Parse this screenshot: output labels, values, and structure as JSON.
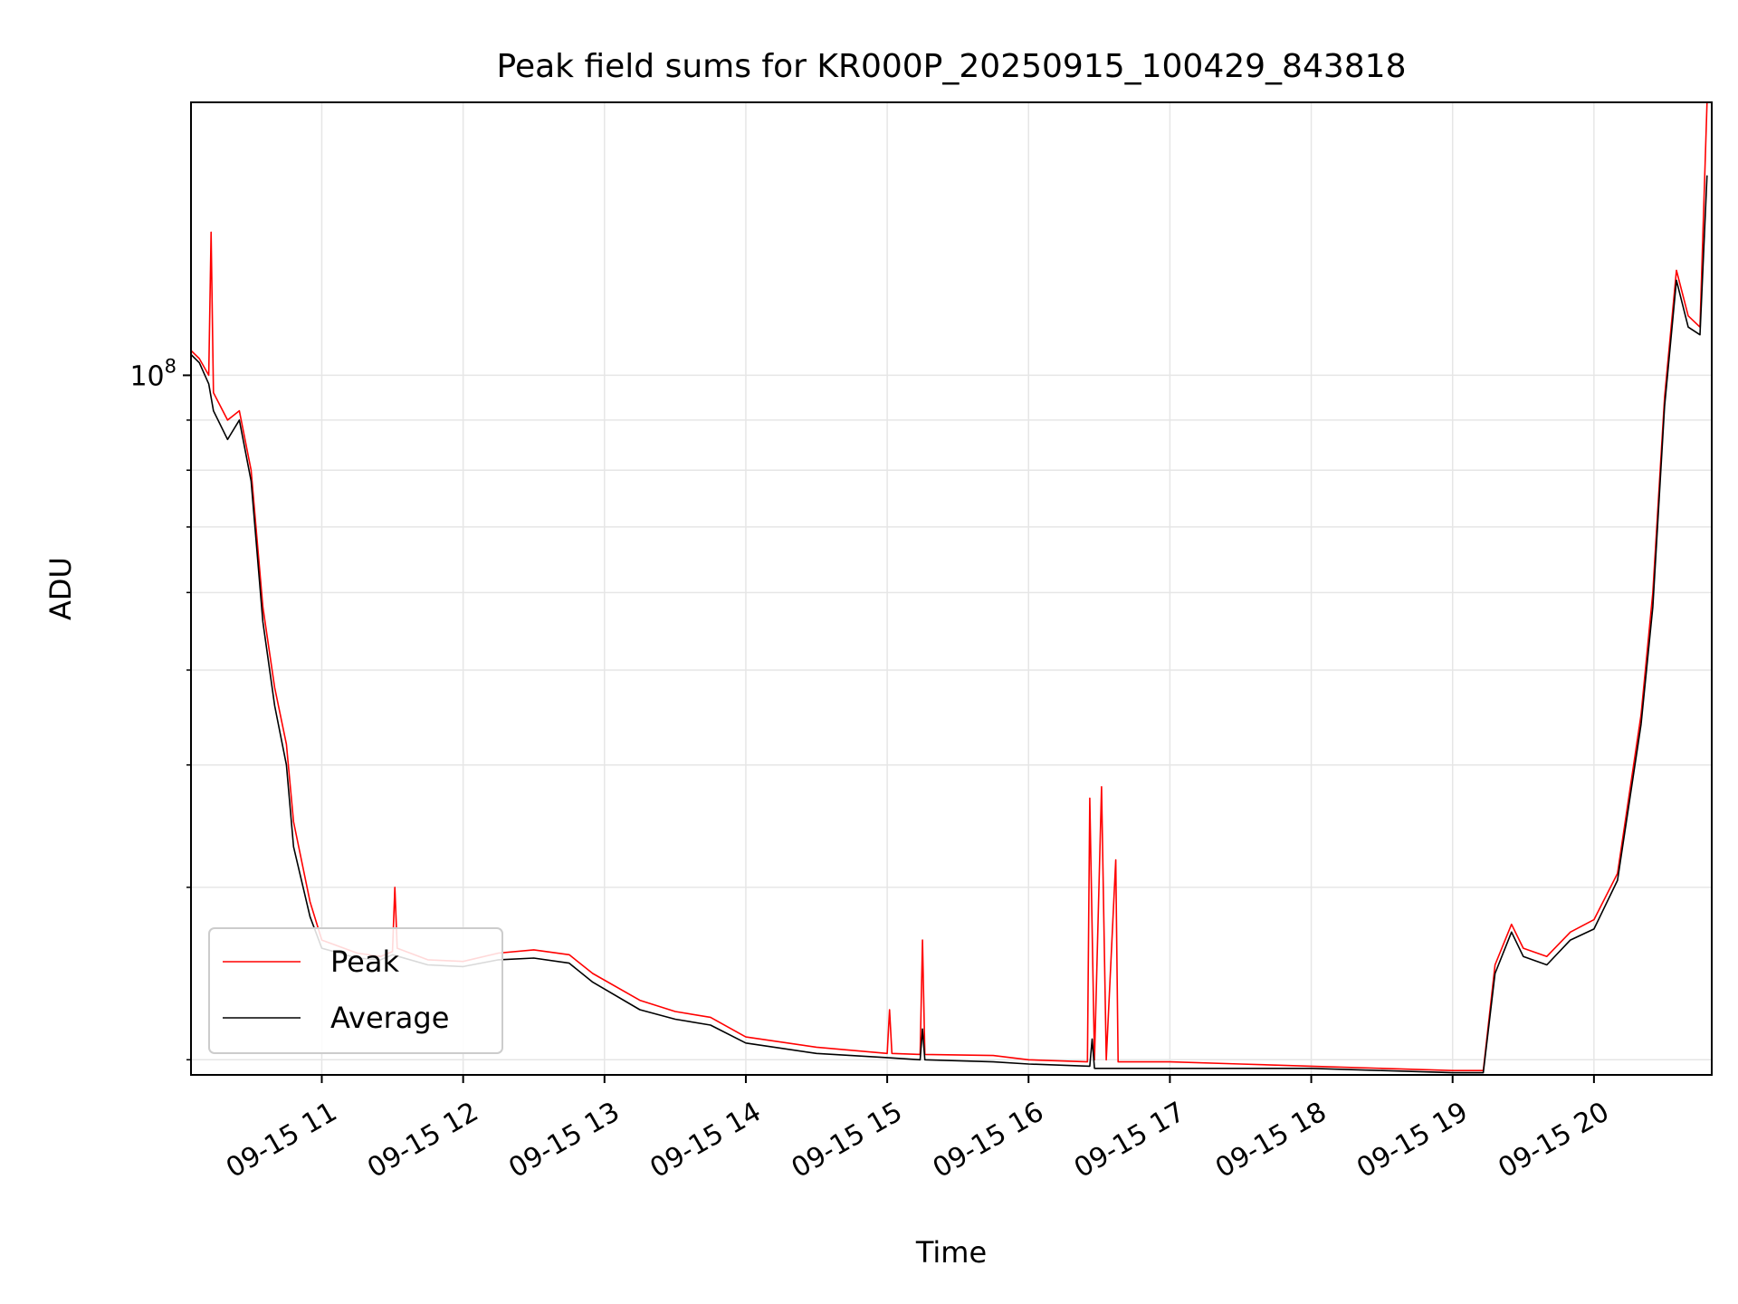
{
  "chart_data": {
    "type": "line",
    "title": "Peak field sums for KR000P_20250915_100429_843818",
    "xlabel": "Time",
    "ylabel": "ADU",
    "y_scale": "log",
    "y_tick_labels": [
      {
        "value": 100000000,
        "base": "10",
        "exp": "8"
      }
    ],
    "y_minor_ticks": [
      20000000,
      30000000,
      40000000,
      50000000,
      60000000,
      70000000,
      80000000,
      90000000
    ],
    "ylim": [
      19300000,
      190000000
    ],
    "xlim": [
      "2025-09-15 10:04:29",
      "2025-09-15 20:50:00"
    ],
    "x_tick_labels": [
      {
        "time": "2025-09-15 11:00",
        "label": "09-15 11"
      },
      {
        "time": "2025-09-15 12:00",
        "label": "09-15 12"
      },
      {
        "time": "2025-09-15 13:00",
        "label": "09-15 13"
      },
      {
        "time": "2025-09-15 14:00",
        "label": "09-15 14"
      },
      {
        "time": "2025-09-15 15:00",
        "label": "09-15 15"
      },
      {
        "time": "2025-09-15 16:00",
        "label": "09-15 16"
      },
      {
        "time": "2025-09-15 17:00",
        "label": "09-15 17"
      },
      {
        "time": "2025-09-15 18:00",
        "label": "09-15 18"
      },
      {
        "time": "2025-09-15 19:00",
        "label": "09-15 19"
      },
      {
        "time": "2025-09-15 20:00",
        "label": "09-15 20"
      }
    ],
    "grid": true,
    "legend": {
      "position": "lower-left"
    },
    "series": [
      {
        "name": "Peak",
        "color": "#ff0000",
        "points": [
          [
            "2025-09-15 10:04:29",
            106000000
          ],
          [
            "2025-09-15 10:08:00",
            104000000
          ],
          [
            "2025-09-15 10:12:00",
            100000000
          ],
          [
            "2025-09-15 10:13:00",
            140000000
          ],
          [
            "2025-09-15 10:14:00",
            96000000
          ],
          [
            "2025-09-15 10:20:00",
            90000000
          ],
          [
            "2025-09-15 10:25:00",
            92000000
          ],
          [
            "2025-09-15 10:30:00",
            80000000
          ],
          [
            "2025-09-15 10:35:00",
            58000000
          ],
          [
            "2025-09-15 10:40:00",
            48000000
          ],
          [
            "2025-09-15 10:45:00",
            42000000
          ],
          [
            "2025-09-15 10:48:00",
            35000000
          ],
          [
            "2025-09-15 10:55:00",
            29000000
          ],
          [
            "2025-09-15 11:00:00",
            26500000
          ],
          [
            "2025-09-15 11:15:00",
            25700000
          ],
          [
            "2025-09-15 11:25:00",
            25500000
          ],
          [
            "2025-09-15 11:30:00",
            25800000
          ],
          [
            "2025-09-15 11:31:00",
            30000000
          ],
          [
            "2025-09-15 11:32:00",
            26000000
          ],
          [
            "2025-09-15 11:45:00",
            25300000
          ],
          [
            "2025-09-15 12:00:00",
            25200000
          ],
          [
            "2025-09-15 12:15:00",
            25700000
          ],
          [
            "2025-09-15 12:30:00",
            25900000
          ],
          [
            "2025-09-15 12:45:00",
            25600000
          ],
          [
            "2025-09-15 12:55:00",
            24500000
          ],
          [
            "2025-09-15 13:15:00",
            23000000
          ],
          [
            "2025-09-15 13:30:00",
            22400000
          ],
          [
            "2025-09-15 13:45:00",
            22100000
          ],
          [
            "2025-09-15 14:00:00",
            21100000
          ],
          [
            "2025-09-15 14:30:00",
            20600000
          ],
          [
            "2025-09-15 15:00:00",
            20300000
          ],
          [
            "2025-09-15 15:01:00",
            22500000
          ],
          [
            "2025-09-15 15:02:00",
            20300000
          ],
          [
            "2025-09-15 15:14:00",
            20250000
          ],
          [
            "2025-09-15 15:15:00",
            26500000
          ],
          [
            "2025-09-15 15:16:00",
            20250000
          ],
          [
            "2025-09-15 15:45:00",
            20200000
          ],
          [
            "2025-09-15 16:00:00",
            20000000
          ],
          [
            "2025-09-15 16:25:00",
            19900000
          ],
          [
            "2025-09-15 16:26:00",
            37000000
          ],
          [
            "2025-09-15 16:28:00",
            20000000
          ],
          [
            "2025-09-15 16:31:00",
            38000000
          ],
          [
            "2025-09-15 16:33:00",
            20000000
          ],
          [
            "2025-09-15 16:37:00",
            32000000
          ],
          [
            "2025-09-15 16:38:00",
            19900000
          ],
          [
            "2025-09-15 17:00:00",
            19900000
          ],
          [
            "2025-09-15 17:30:00",
            19800000
          ],
          [
            "2025-09-15 18:00:00",
            19700000
          ],
          [
            "2025-09-15 18:30:00",
            19600000
          ],
          [
            "2025-09-15 19:00:00",
            19500000
          ],
          [
            "2025-09-15 19:13:00",
            19500000
          ],
          [
            "2025-09-15 19:18:00",
            25000000
          ],
          [
            "2025-09-15 19:25:00",
            27500000
          ],
          [
            "2025-09-15 19:30:00",
            26000000
          ],
          [
            "2025-09-15 19:40:00",
            25500000
          ],
          [
            "2025-09-15 19:50:00",
            27000000
          ],
          [
            "2025-09-15 20:00:00",
            27800000
          ],
          [
            "2025-09-15 20:10:00",
            31000000
          ],
          [
            "2025-09-15 20:20:00",
            45000000
          ],
          [
            "2025-09-15 20:25:00",
            60000000
          ],
          [
            "2025-09-15 20:30:00",
            95000000
          ],
          [
            "2025-09-15 20:35:00",
            128000000
          ],
          [
            "2025-09-15 20:40:00",
            115000000
          ],
          [
            "2025-09-15 20:45:00",
            112000000
          ],
          [
            "2025-09-15 20:48:00",
            190000000
          ]
        ]
      },
      {
        "name": "Average",
        "color": "#000000",
        "points": [
          [
            "2025-09-15 10:04:29",
            105000000
          ],
          [
            "2025-09-15 10:08:00",
            103000000
          ],
          [
            "2025-09-15 10:12:00",
            98000000
          ],
          [
            "2025-09-15 10:14:00",
            92000000
          ],
          [
            "2025-09-15 10:20:00",
            86000000
          ],
          [
            "2025-09-15 10:25:00",
            90000000
          ],
          [
            "2025-09-15 10:30:00",
            78000000
          ],
          [
            "2025-09-15 10:35:00",
            56000000
          ],
          [
            "2025-09-15 10:40:00",
            46000000
          ],
          [
            "2025-09-15 10:45:00",
            40000000
          ],
          [
            "2025-09-15 10:48:00",
            33000000
          ],
          [
            "2025-09-15 10:55:00",
            28000000
          ],
          [
            "2025-09-15 11:00:00",
            26000000
          ],
          [
            "2025-09-15 11:15:00",
            25400000
          ],
          [
            "2025-09-15 11:25:00",
            25300000
          ],
          [
            "2025-09-15 11:30:00",
            25600000
          ],
          [
            "2025-09-15 11:45:00",
            25000000
          ],
          [
            "2025-09-15 12:00:00",
            24900000
          ],
          [
            "2025-09-15 12:15:00",
            25300000
          ],
          [
            "2025-09-15 12:30:00",
            25400000
          ],
          [
            "2025-09-15 12:45:00",
            25100000
          ],
          [
            "2025-09-15 12:55:00",
            24000000
          ],
          [
            "2025-09-15 13:15:00",
            22500000
          ],
          [
            "2025-09-15 13:30:00",
            22000000
          ],
          [
            "2025-09-15 13:45:00",
            21700000
          ],
          [
            "2025-09-15 14:00:00",
            20800000
          ],
          [
            "2025-09-15 14:30:00",
            20300000
          ],
          [
            "2025-09-15 15:00:00",
            20100000
          ],
          [
            "2025-09-15 15:14:00",
            20000000
          ],
          [
            "2025-09-15 15:15:00",
            21500000
          ],
          [
            "2025-09-15 15:16:00",
            20000000
          ],
          [
            "2025-09-15 15:45:00",
            19900000
          ],
          [
            "2025-09-15 16:00:00",
            19800000
          ],
          [
            "2025-09-15 16:26:00",
            19700000
          ],
          [
            "2025-09-15 16:27:00",
            21000000
          ],
          [
            "2025-09-15 16:28:00",
            19600000
          ],
          [
            "2025-09-15 17:00:00",
            19600000
          ],
          [
            "2025-09-15 17:30:00",
            19600000
          ],
          [
            "2025-09-15 18:00:00",
            19600000
          ],
          [
            "2025-09-15 18:30:00",
            19500000
          ],
          [
            "2025-09-15 19:00:00",
            19400000
          ],
          [
            "2025-09-15 19:13:00",
            19400000
          ],
          [
            "2025-09-15 19:18:00",
            24500000
          ],
          [
            "2025-09-15 19:25:00",
            27000000
          ],
          [
            "2025-09-15 19:30:00",
            25500000
          ],
          [
            "2025-09-15 19:40:00",
            25000000
          ],
          [
            "2025-09-15 19:50:00",
            26500000
          ],
          [
            "2025-09-15 20:00:00",
            27200000
          ],
          [
            "2025-09-15 20:10:00",
            30500000
          ],
          [
            "2025-09-15 20:20:00",
            44000000
          ],
          [
            "2025-09-15 20:25:00",
            58000000
          ],
          [
            "2025-09-15 20:30:00",
            93000000
          ],
          [
            "2025-09-15 20:35:00",
            125000000
          ],
          [
            "2025-09-15 20:40:00",
            112000000
          ],
          [
            "2025-09-15 20:45:00",
            110000000
          ],
          [
            "2025-09-15 20:48:00",
            160000000
          ]
        ]
      }
    ]
  }
}
